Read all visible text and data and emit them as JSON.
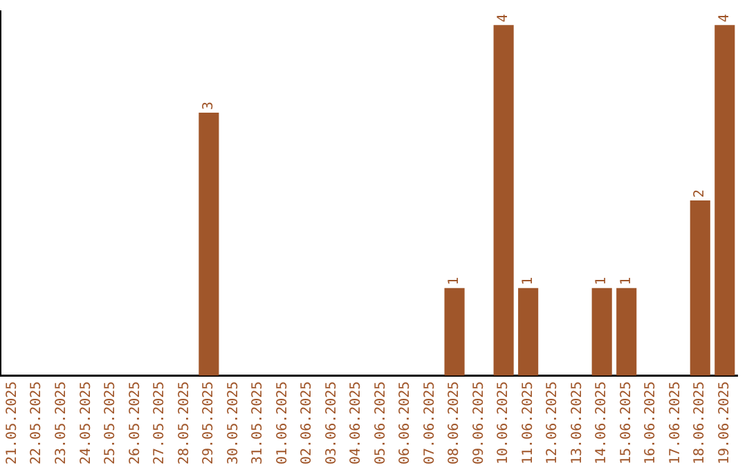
{
  "chart_data": {
    "type": "bar",
    "relative": false,
    "categories": [
      "21.05.2025",
      "22.05.2025",
      "23.05.2025",
      "24.05.2025",
      "25.05.2025",
      "26.05.2025",
      "27.05.2025",
      "28.05.2025",
      "29.05.2025",
      "30.05.2025",
      "31.05.2025",
      "01.06.2025",
      "02.06.2025",
      "03.06.2025",
      "04.06.2025",
      "05.06.2025",
      "06.06.2025",
      "07.06.2025",
      "08.06.2025",
      "09.06.2025",
      "10.06.2025",
      "11.06.2025",
      "12.06.2025",
      "13.06.2025",
      "14.06.2025",
      "15.06.2025",
      "16.06.2025",
      "17.06.2025",
      "18.06.2025",
      "19.06.2025"
    ],
    "values": [
      0,
      0,
      0,
      0,
      0,
      0,
      0,
      0,
      3,
      0,
      0,
      0,
      0,
      0,
      0,
      0,
      0,
      0,
      1,
      0,
      4,
      1,
      0,
      0,
      1,
      1,
      0,
      0,
      2,
      4
    ],
    "value_labels": [
      null,
      null,
      null,
      null,
      null,
      null,
      null,
      null,
      "3",
      null,
      null,
      null,
      null,
      null,
      null,
      null,
      null,
      null,
      "1",
      null,
      "4",
      "1",
      null,
      null,
      "1",
      "1",
      null,
      null,
      "2",
      "4"
    ],
    "color": "#a0562a",
    "grid": false,
    "legend": false,
    "tick_labels": "x"
  }
}
